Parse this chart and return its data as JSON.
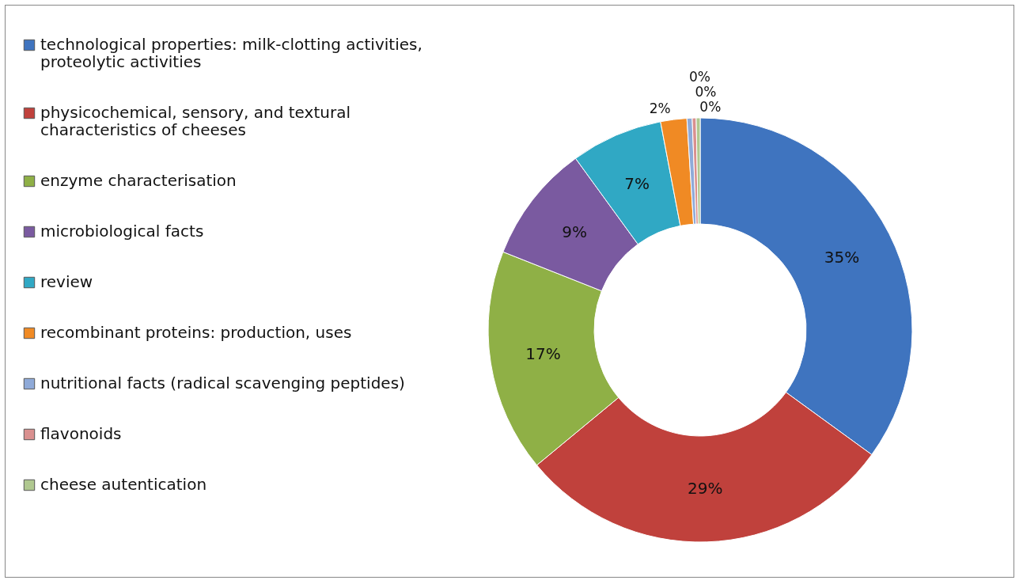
{
  "chart_data": {
    "type": "donut",
    "categories": [
      "technological properties: milk-clotting activities, proteolytic activities",
      "physicochemical, sensory, and textural characteristics of cheeses",
      "enzyme characterisation",
      "microbiological facts",
      "review",
      "recombinant proteins: production, uses",
      "nutritional facts (radical scavenging peptides)",
      "flavonoids",
      "cheese autentication"
    ],
    "values": [
      35,
      29,
      17,
      9,
      7,
      2,
      0.4,
      0.3,
      0.3
    ],
    "value_labels": [
      "35%",
      "29%",
      "17%",
      "9%",
      "7%",
      "2%",
      "0%",
      "0%",
      "0%"
    ],
    "colors": [
      "#3f74bf",
      "#c0413c",
      "#8fb046",
      "#7a5aa0",
      "#30a8c4",
      "#f08a24",
      "#8faad8",
      "#d9908f",
      "#b0c890"
    ],
    "legend": "left"
  }
}
